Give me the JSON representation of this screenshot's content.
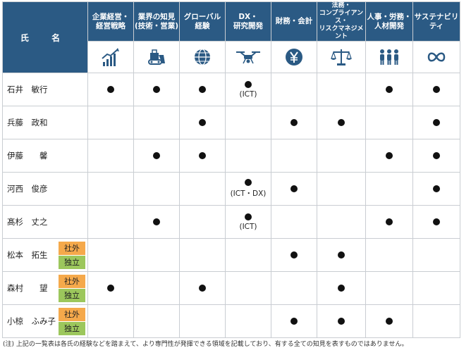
{
  "header": {
    "name_label": "氏 名",
    "columns": [
      {
        "line1": "企業経営・",
        "line2": "経営戦略",
        "icon": "growth-chart-icon"
      },
      {
        "line1": "業界の知見",
        "line2": "(技術・営業)",
        "icon": "bulldozer-icon"
      },
      {
        "line1": "グローバル",
        "line2": "経験",
        "icon": "globe-icon"
      },
      {
        "line1": "DX・",
        "line2": "研究開発",
        "icon": "drone-icon"
      },
      {
        "line1": "財務・会計",
        "line2": "",
        "icon": "yen-icon"
      },
      {
        "line1": "法務・",
        "line2": "コンプライアンス・",
        "line3": "リスクマネジメント",
        "icon": "scales-icon"
      },
      {
        "line1": "人事・労務・",
        "line2": "人材開発",
        "icon": "people-icon"
      },
      {
        "line1": "サステナビリティ",
        "line2": "",
        "icon": "infinity-icon"
      }
    ]
  },
  "tags": {
    "external": "社外",
    "independent": "独立"
  },
  "rows": [
    {
      "name": "石井　敏行",
      "tags": false,
      "marks": [
        1,
        1,
        1,
        1,
        0,
        0,
        1,
        1
      ],
      "notes": [
        "",
        "",
        "",
        "(ICT)",
        "",
        "",
        "",
        ""
      ]
    },
    {
      "name": "兵藤　政和",
      "tags": false,
      "marks": [
        0,
        0,
        1,
        0,
        1,
        1,
        0,
        1
      ],
      "notes": [
        "",
        "",
        "",
        "",
        "",
        "",
        "",
        ""
      ]
    },
    {
      "name": "伊藤　　馨",
      "tags": false,
      "marks": [
        0,
        1,
        1,
        0,
        0,
        0,
        1,
        1
      ],
      "notes": [
        "",
        "",
        "",
        "",
        "",
        "",
        "",
        ""
      ]
    },
    {
      "name": "河西　俊彦",
      "tags": false,
      "marks": [
        0,
        0,
        0,
        1,
        1,
        0,
        0,
        1
      ],
      "notes": [
        "",
        "",
        "",
        "(ICT・DX)",
        "",
        "",
        "",
        ""
      ]
    },
    {
      "name": "髙杉　丈之",
      "tags": false,
      "marks": [
        0,
        1,
        0,
        1,
        0,
        0,
        1,
        1
      ],
      "notes": [
        "",
        "",
        "",
        "(ICT)",
        "",
        "",
        "",
        ""
      ]
    },
    {
      "name": "松本　拓生",
      "tags": true,
      "marks": [
        0,
        0,
        0,
        0,
        1,
        1,
        0,
        0
      ],
      "notes": [
        "",
        "",
        "",
        "",
        "",
        "",
        "",
        ""
      ]
    },
    {
      "name": "森村　　望",
      "tags": true,
      "marks": [
        1,
        0,
        1,
        0,
        0,
        1,
        0,
        0
      ],
      "notes": [
        "",
        "",
        "",
        "",
        "",
        "",
        "",
        ""
      ]
    },
    {
      "name": "小椋　ふみ子",
      "tags": true,
      "marks": [
        0,
        0,
        0,
        0,
        1,
        1,
        1,
        0
      ],
      "notes": [
        "",
        "",
        "",
        "",
        "",
        "",
        "",
        ""
      ]
    }
  ],
  "footnote": "(注) 上記の一覧表は各氏の経験などを踏まえて、より専門性が発揮できる領域を記載しており、有する全ての知見を表すものではありません。"
}
